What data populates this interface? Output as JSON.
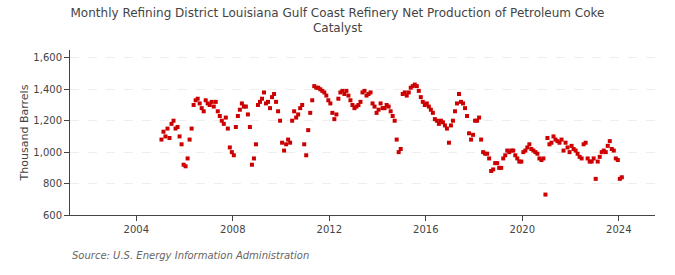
{
  "chart_data": {
    "type": "scatter",
    "title": "Monthly Refining District Louisiana Gulf Coast Refinery Net Production of Petroleum Coke\nCatalyst",
    "y_label": "Thousand Barrels",
    "annotations": [
      "Source: U.S. Energy Information Administration"
    ],
    "color": "#cc0000",
    "marker": "square",
    "grid": "y",
    "xlim": [
      2001.25,
      2025.5
    ],
    "xticks": [
      2004,
      2008,
      2012,
      2016,
      2020,
      2024
    ],
    "ylim": [
      600,
      1650
    ],
    "yticks": [
      600,
      800,
      {
        "value": 1000,
        "label": "1,000"
      },
      {
        "value": 1200,
        "label": "1,200"
      },
      {
        "value": 1400,
        "label": "1,400"
      },
      {
        "value": 1600,
        "label": "1,600"
      }
    ],
    "x": [
      2005.0417,
      2005.125,
      2005.2083,
      2005.2917,
      2005.375,
      2005.4583,
      2005.5417,
      2005.625,
      2005.7083,
      2005.7917,
      2005.875,
      2005.9583,
      2006.0417,
      2006.125,
      2006.2083,
      2006.2917,
      2006.375,
      2006.4583,
      2006.5417,
      2006.625,
      2006.7083,
      2006.7917,
      2006.875,
      2006.9583,
      2007.0417,
      2007.125,
      2007.2083,
      2007.2917,
      2007.375,
      2007.4583,
      2007.5417,
      2007.625,
      2007.7083,
      2007.7917,
      2007.875,
      2007.9583,
      2008.0417,
      2008.125,
      2008.2083,
      2008.2917,
      2008.375,
      2008.4583,
      2008.5417,
      2008.625,
      2008.7083,
      2008.7917,
      2008.875,
      2008.9583,
      2009.0417,
      2009.125,
      2009.2083,
      2009.2917,
      2009.375,
      2009.4583,
      2009.5417,
      2009.625,
      2009.7083,
      2009.7917,
      2009.875,
      2009.9583,
      2010.0417,
      2010.125,
      2010.2083,
      2010.2917,
      2010.375,
      2010.4583,
      2010.5417,
      2010.625,
      2010.7083,
      2010.7917,
      2010.875,
      2010.9583,
      2011.0417,
      2011.125,
      2011.2083,
      2011.2917,
      2011.375,
      2011.4583,
      2011.5417,
      2011.625,
      2011.7083,
      2011.7917,
      2011.875,
      2011.9583,
      2012.0417,
      2012.125,
      2012.2083,
      2012.2917,
      2012.375,
      2012.4583,
      2012.5417,
      2012.625,
      2012.7083,
      2012.7917,
      2012.875,
      2012.9583,
      2013.0417,
      2013.125,
      2013.2083,
      2013.2917,
      2013.375,
      2013.4583,
      2013.5417,
      2013.625,
      2013.7083,
      2013.7917,
      2013.875,
      2013.9583,
      2014.0417,
      2014.125,
      2014.2083,
      2014.2917,
      2014.375,
      2014.4583,
      2014.5417,
      2014.625,
      2014.7083,
      2014.7917,
      2014.875,
      2014.9583,
      2015.0417,
      2015.125,
      2015.2083,
      2015.2917,
      2015.375,
      2015.4583,
      2015.5417,
      2015.625,
      2015.7083,
      2015.7917,
      2015.875,
      2015.9583,
      2016.0417,
      2016.125,
      2016.2083,
      2016.2917,
      2016.375,
      2016.4583,
      2016.5417,
      2016.625,
      2016.7083,
      2016.7917,
      2016.875,
      2016.9583,
      2017.0417,
      2017.125,
      2017.2083,
      2017.2917,
      2017.375,
      2017.4583,
      2017.5417,
      2017.625,
      2017.7083,
      2017.7917,
      2017.875,
      2017.9583,
      2018.0417,
      2018.125,
      2018.2083,
      2018.2917,
      2018.375,
      2018.4583,
      2018.5417,
      2018.625,
      2018.7083,
      2018.7917,
      2018.875,
      2018.9583,
      2019.0417,
      2019.125,
      2019.2083,
      2019.2917,
      2019.375,
      2019.4583,
      2019.5417,
      2019.625,
      2019.7083,
      2019.7917,
      2019.875,
      2019.9583,
      2020.0417,
      2020.125,
      2020.2083,
      2020.2917,
      2020.375,
      2020.4583,
      2020.5417,
      2020.625,
      2020.7083,
      2020.7917,
      2020.875,
      2020.9583,
      2021.0417,
      2021.125,
      2021.2083,
      2021.2917,
      2021.375,
      2021.4583,
      2021.5417,
      2021.625,
      2021.7083,
      2021.7917,
      2021.875,
      2021.9583,
      2022.0417,
      2022.125,
      2022.2083,
      2022.2917,
      2022.375,
      2022.4583,
      2022.5417,
      2022.625,
      2022.7083,
      2022.7917,
      2022.875,
      2022.9583,
      2023.0417,
      2023.125,
      2023.2083,
      2023.2917,
      2023.375,
      2023.4583,
      2023.5417,
      2023.625,
      2023.7083,
      2023.7917,
      2023.875,
      2023.9583,
      2024.0417,
      2024.125
    ],
    "values": [
      1080,
      1130,
      1100,
      1150,
      1090,
      1180,
      1200,
      1150,
      1160,
      1100,
      1050,
      920,
      910,
      960,
      1080,
      1150,
      1300,
      1330,
      1340,
      1310,
      1280,
      1260,
      1330,
      1310,
      1300,
      1320,
      1290,
      1320,
      1260,
      1230,
      1200,
      1180,
      1220,
      1150,
      1030,
      1000,
      980,
      1160,
      1230,
      1270,
      1310,
      1290,
      1290,
      1240,
      1160,
      920,
      960,
      1050,
      1300,
      1320,
      1340,
      1380,
      1310,
      1320,
      1280,
      1350,
      1370,
      1320,
      1260,
      1200,
      1060,
      1010,
      1050,
      1080,
      1060,
      1200,
      1260,
      1220,
      1240,
      1280,
      1300,
      1050,
      980,
      1140,
      1250,
      1330,
      1420,
      1410,
      1410,
      1400,
      1390,
      1380,
      1360,
      1330,
      1310,
      1250,
      1210,
      1240,
      1340,
      1380,
      1390,
      1370,
      1390,
      1360,
      1330,
      1300,
      1280,
      1290,
      1300,
      1320,
      1380,
      1390,
      1360,
      1370,
      1380,
      1310,
      1290,
      1250,
      1270,
      1310,
      1280,
      1280,
      1300,
      1290,
      1260,
      1230,
      1200,
      1080,
      1000,
      1020,
      1370,
      1380,
      1360,
      1380,
      1410,
      1420,
      1430,
      1420,
      1390,
      1350,
      1320,
      1300,
      1310,
      1290,
      1270,
      1250,
      1210,
      1200,
      1180,
      1200,
      1190,
      1170,
      1150,
      1060,
      1170,
      1200,
      1260,
      1310,
      1370,
      1320,
      1310,
      1280,
      1230,
      1120,
      1080,
      1110,
      1200,
      1200,
      1220,
      1080,
      1000,
      990,
      990,
      960,
      880,
      890,
      930,
      930,
      900,
      900,
      960,
      980,
      1010,
      1000,
      1010,
      1010,
      980,
      960,
      940,
      940,
      1000,
      1010,
      1030,
      1050,
      1020,
      1010,
      1000,
      990,
      960,
      950,
      960,
      730,
      1090,
      1050,
      1060,
      1100,
      1080,
      1070,
      1060,
      1080,
      1010,
      1060,
      1030,
      1000,
      1040,
      1020,
      1010,
      990,
      970,
      960,
      1050,
      1060,
      960,
      940,
      940,
      960,
      830,
      940,
      970,
      1000,
      1010,
      1000,
      1040,
      1070,
      1020,
      1010,
      960,
      950,
      830,
      840
    ]
  }
}
